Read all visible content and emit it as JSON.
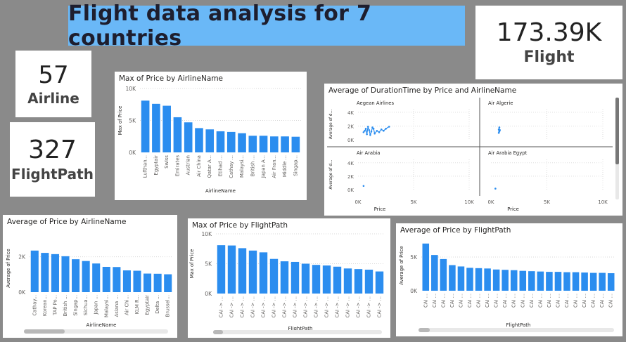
{
  "dashboard": {
    "title": "Flight data analysis for 7 countries"
  },
  "kpis": {
    "flight": {
      "value": "173.39K",
      "label": "Flight"
    },
    "airline": {
      "value": "57",
      "label": "Airline"
    },
    "flightpath": {
      "value": "327",
      "label": "FlightPath"
    }
  },
  "colors": {
    "bar": "#2b8def",
    "banner": "#6ab8f7",
    "background": "#8a8a8a"
  },
  "chart_data": [
    {
      "id": "max-price-airline",
      "type": "bar",
      "title": "Max of Price by AirlineName",
      "xlabel": "AirlineName",
      "ylabel": "Max of Price",
      "ylim": [
        0,
        10000
      ],
      "yticks": [
        "0K",
        "5K",
        "10K"
      ],
      "categories": [
        "Lufthan...",
        "Egyptair",
        "Swiss",
        "Emirates",
        "Austrian",
        "Air China",
        "Qatar A...",
        "Etihad ...",
        "Cathay ...",
        "Malaysi...",
        "British ...",
        "Japan A...",
        "Air Fran...",
        "Middle ...",
        "Singap..."
      ],
      "values": [
        8100,
        7600,
        7300,
        5500,
        4700,
        3800,
        3600,
        3300,
        3200,
        3000,
        2600,
        2600,
        2500,
        2500,
        2450
      ]
    },
    {
      "id": "avg-price-airline",
      "type": "bar",
      "title": "Average of Price by AirlineName",
      "xlabel": "AirlineName",
      "ylabel": "Average of Price",
      "ylim": [
        0,
        2700
      ],
      "yticks": [
        "0K",
        "2K"
      ],
      "categories": [
        "Cathay...",
        "Korean...",
        "TAP Po...",
        "British ...",
        "Singap...",
        "Sichua...",
        "Japan ...",
        "Malaysi...",
        "Asiana ...",
        "Air Chi...",
        "KLM R...",
        "Egyptair",
        "Delta ...",
        "Brussel..."
      ],
      "values": [
        2350,
        2220,
        2150,
        2030,
        1860,
        1760,
        1620,
        1430,
        1420,
        1230,
        1210,
        1050,
        1040,
        1010
      ]
    },
    {
      "id": "max-price-flightpath",
      "type": "bar",
      "title": "Max of Price by FlightPath",
      "xlabel": "FlightPath",
      "ylabel": "Max of Price",
      "ylim": [
        0,
        10000
      ],
      "yticks": [
        "0K",
        "5K",
        "10K"
      ],
      "categories": [
        "CAI -> ...",
        "CAI -> ...",
        "CAI -> ...",
        "CAI -> ...",
        "CAI -> ...",
        "CAI -> ...",
        "CAI -> ...",
        "CAI -> ...",
        "CAI -> ...",
        "CAI -> ...",
        "CAI -> ...",
        "CAI -> ...",
        "CAI -> ...",
        "CAI -> ...",
        "CAI -> ...",
        "CAI -> ..."
      ],
      "values": [
        8100,
        8050,
        7600,
        7200,
        6900,
        5800,
        5400,
        5300,
        5000,
        4800,
        4700,
        4500,
        4200,
        4100,
        4000,
        3700
      ]
    },
    {
      "id": "avg-price-flightpath",
      "type": "bar",
      "title": "Average of Price by FlightPath",
      "xlabel": "FlightPath",
      "ylabel": "Average of Price",
      "ylim": [
        0,
        7500
      ],
      "yticks": [
        "0K",
        "5K"
      ],
      "categories": [
        "CAI ...",
        "CAI ...",
        "CAI ...",
        "CAI ...",
        "CAI ...",
        "CAI ...",
        "CAI ...",
        "CAI ...",
        "CAI ...",
        "CAI ...",
        "CAI ...",
        "CAI ...",
        "CAI ...",
        "CAI ...",
        "CAI ...",
        "CAI ...",
        "CAI ...",
        "CAI ...",
        "CAI ...",
        "CAI ...",
        "CAI ...",
        "CAI ..."
      ],
      "values": [
        7000,
        5300,
        4700,
        3800,
        3600,
        3400,
        3350,
        3300,
        3150,
        3100,
        3050,
        2950,
        2900,
        2850,
        2800,
        2800,
        2750,
        2750,
        2700,
        2650,
        2650,
        2600
      ]
    },
    {
      "id": "duration-scatter",
      "type": "scatter",
      "title": "Average of DurationTime by Price and AirlineName",
      "xlabel": "Price",
      "ylabel": "Average of d...",
      "xlim": [
        0,
        10000
      ],
      "ylim": [
        0,
        4500
      ],
      "xticks": [
        "0K",
        "5K",
        "10K"
      ],
      "yticks": [
        "0K",
        "2K",
        "4K"
      ],
      "panels": [
        {
          "name": "Aegean Airlines",
          "points": [
            [
              500,
              1100
            ],
            [
              700,
              1600
            ],
            [
              800,
              800
            ],
            [
              1000,
              1400
            ],
            [
              1200,
              1200
            ],
            [
              1300,
              1800
            ],
            [
              1500,
              900
            ],
            [
              1700,
              1300
            ],
            [
              1900,
              1100
            ],
            [
              2100,
              1500
            ],
            [
              2300,
              1300
            ],
            [
              2500,
              1600
            ],
            [
              2800,
              1900
            ],
            [
              600,
              1300
            ],
            [
              900,
              1900
            ],
            [
              1100,
              700
            ],
            [
              1400,
              1600
            ]
          ]
        },
        {
          "name": "Air Algerie",
          "points": [
            [
              700,
              1000
            ],
            [
              700,
              1500
            ],
            [
              750,
              1800
            ],
            [
              750,
              1200
            ],
            [
              800,
              1400
            ]
          ]
        },
        {
          "name": "Air Arabia",
          "points": [
            [
              500,
              550
            ]
          ]
        },
        {
          "name": "Air Arabia Egypt",
          "points": [
            [
              400,
              150
            ]
          ]
        }
      ]
    }
  ]
}
